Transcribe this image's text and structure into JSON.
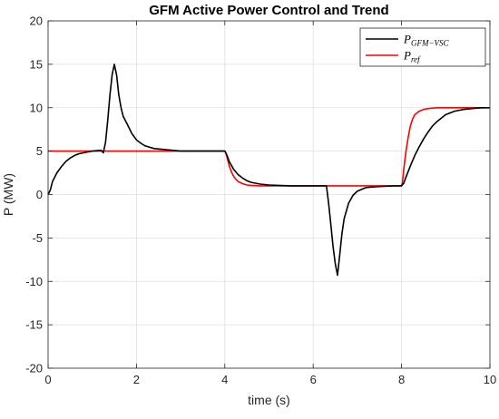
{
  "chart_data": {
    "type": "line",
    "title": "GFM Active Power Control and Trend",
    "xlabel": "time (s)",
    "ylabel": "P (MW)",
    "xlim": [
      0,
      10
    ],
    "ylim": [
      -20,
      20
    ],
    "xticks": [
      0,
      2,
      4,
      6,
      8,
      10
    ],
    "yticks": [
      -20,
      -15,
      -10,
      -5,
      0,
      5,
      10,
      15,
      20
    ],
    "grid": true,
    "legend_position": "top-right",
    "series": [
      {
        "name": "P_{GFM-VSC}",
        "legend_main": "P",
        "legend_sub": "GFM−VSC",
        "color": "#000000",
        "x": [
          0,
          0.05,
          0.1,
          0.2,
          0.3,
          0.4,
          0.5,
          0.6,
          0.7,
          0.8,
          1.0,
          1.2,
          1.25,
          1.3,
          1.35,
          1.4,
          1.45,
          1.5,
          1.55,
          1.6,
          1.65,
          1.7,
          1.8,
          1.9,
          2.0,
          2.1,
          2.2,
          2.4,
          2.6,
          2.8,
          3.0,
          3.5,
          4.0,
          4.05,
          4.1,
          4.2,
          4.3,
          4.4,
          4.5,
          4.6,
          4.8,
          5.0,
          5.5,
          6.0,
          6.3,
          6.35,
          6.4,
          6.45,
          6.5,
          6.55,
          6.6,
          6.65,
          6.7,
          6.8,
          6.9,
          7.0,
          7.2,
          7.4,
          7.6,
          7.8,
          8.0,
          8.05,
          8.1,
          8.2,
          8.3,
          8.4,
          8.5,
          8.6,
          8.7,
          8.8,
          8.9,
          9.0,
          9.2,
          9.4,
          9.6,
          9.8,
          10.0
        ],
        "y": [
          0,
          0.5,
          1.5,
          2.5,
          3.2,
          3.8,
          4.2,
          4.5,
          4.7,
          4.8,
          5.0,
          5.1,
          4.8,
          6.0,
          8.5,
          11.5,
          13.8,
          15.0,
          13.8,
          11.5,
          10.0,
          9.0,
          8.0,
          7.0,
          6.3,
          5.9,
          5.6,
          5.3,
          5.2,
          5.1,
          5.0,
          5.0,
          5.0,
          4.5,
          3.8,
          2.9,
          2.3,
          1.9,
          1.6,
          1.4,
          1.2,
          1.1,
          1.0,
          1.0,
          1.0,
          -1.0,
          -3.5,
          -6.0,
          -8.0,
          -9.3,
          -7.0,
          -4.5,
          -2.8,
          -1.0,
          -0.1,
          0.4,
          0.8,
          0.9,
          0.95,
          1.0,
          1.0,
          1.3,
          2.0,
          3.3,
          4.5,
          5.5,
          6.4,
          7.2,
          7.9,
          8.4,
          8.8,
          9.2,
          9.6,
          9.8,
          9.9,
          10.0,
          10.0
        ]
      },
      {
        "name": "P_{ref}",
        "legend_main": "P",
        "legend_sub": "ref",
        "color": "#ff0000",
        "x": [
          0,
          4.0,
          4.02,
          4.05,
          4.1,
          4.15,
          4.2,
          4.25,
          4.3,
          4.4,
          4.5,
          4.6,
          4.8,
          5.0,
          6.0,
          8.0,
          8.02,
          8.05,
          8.1,
          8.15,
          8.2,
          8.25,
          8.3,
          8.4,
          8.5,
          8.6,
          8.8,
          9.0,
          10.0
        ],
        "y": [
          5,
          5,
          4.85,
          4.3,
          3.3,
          2.6,
          2.1,
          1.75,
          1.5,
          1.25,
          1.1,
          1.05,
          1.0,
          1.0,
          1.0,
          1.0,
          1.4,
          2.9,
          5.0,
          6.6,
          7.9,
          8.7,
          9.2,
          9.6,
          9.8,
          9.9,
          10.0,
          10.0,
          10.0
        ]
      }
    ]
  }
}
